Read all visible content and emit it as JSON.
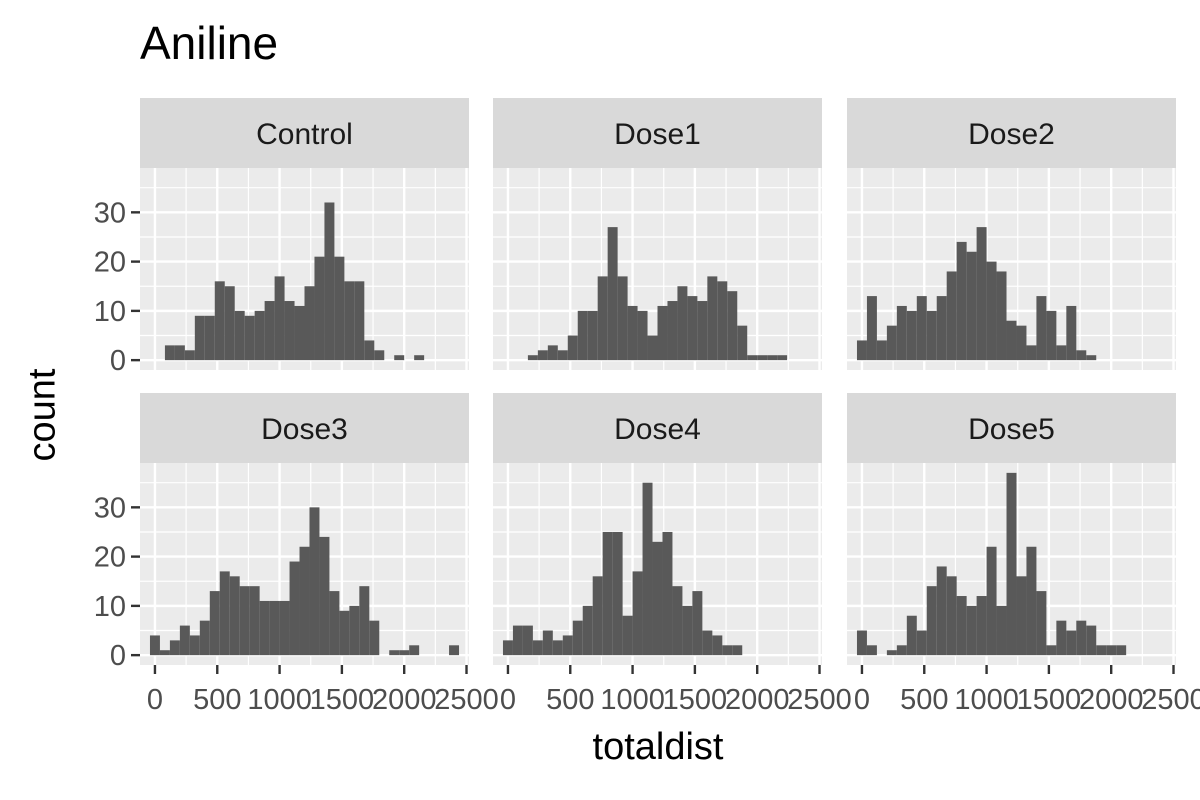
{
  "chart_data": {
    "type": "bar",
    "title": "Aniline",
    "xlabel": "totaldist",
    "ylabel": "count",
    "xlim": [
      -120,
      2520
    ],
    "ylim": [
      -2,
      39
    ],
    "x_ticks": [
      "0",
      "500",
      "1000",
      "1500",
      "2000",
      "2500"
    ],
    "y_ticks": [
      "0",
      "10",
      "20",
      "30"
    ],
    "bin_width": 80,
    "grid": true,
    "panels": [
      {
        "name": "Control",
        "bin_centers": [
          120,
          200,
          280,
          360,
          440,
          520,
          600,
          680,
          760,
          840,
          920,
          1000,
          1080,
          1160,
          1240,
          1320,
          1400,
          1480,
          1560,
          1640,
          1720,
          1800,
          1880,
          1960,
          2040,
          2120
        ],
        "counts": [
          3,
          3,
          2,
          9,
          9,
          16,
          15,
          10,
          9,
          10,
          12,
          17,
          12,
          11,
          15,
          21,
          32,
          21,
          16,
          16,
          4,
          2,
          0,
          1,
          0,
          1
        ]
      },
      {
        "name": "Dose1",
        "bin_centers": [
          200,
          280,
          360,
          440,
          520,
          600,
          680,
          760,
          840,
          920,
          1000,
          1080,
          1160,
          1240,
          1320,
          1400,
          1480,
          1560,
          1640,
          1720,
          1800,
          1880,
          1960,
          2040,
          2120,
          2200
        ],
        "counts": [
          1,
          2,
          3,
          2,
          5,
          10,
          10,
          17,
          27,
          17,
          11,
          10,
          5,
          11,
          12,
          15,
          13,
          12,
          17,
          16,
          14,
          7,
          1,
          1,
          1,
          1
        ]
      },
      {
        "name": "Dose2",
        "bin_centers": [
          0,
          80,
          160,
          240,
          320,
          400,
          480,
          560,
          640,
          720,
          800,
          880,
          960,
          1040,
          1120,
          1200,
          1280,
          1360,
          1440,
          1520,
          1600,
          1680,
          1760,
          1840
        ],
        "counts": [
          4,
          13,
          4,
          7,
          11,
          10,
          13,
          10,
          13,
          18,
          24,
          22,
          27,
          20,
          18,
          8,
          7,
          3,
          13,
          10,
          3,
          11,
          2,
          1
        ]
      },
      {
        "name": "Dose3",
        "bin_centers": [
          0,
          80,
          160,
          240,
          320,
          400,
          480,
          560,
          640,
          720,
          800,
          880,
          960,
          1040,
          1120,
          1200,
          1280,
          1360,
          1440,
          1520,
          1600,
          1680,
          1760,
          1840,
          1920,
          2000,
          2080,
          2160,
          2240,
          2320,
          2400
        ],
        "counts": [
          4,
          1,
          3,
          6,
          4,
          7,
          13,
          17,
          16,
          14,
          14,
          11,
          11,
          11,
          19,
          22,
          30,
          24,
          13,
          9,
          10,
          14,
          7,
          0,
          1,
          1,
          2,
          0,
          0,
          0,
          2
        ]
      },
      {
        "name": "Dose4",
        "bin_centers": [
          0,
          80,
          160,
          240,
          320,
          400,
          480,
          560,
          640,
          720,
          800,
          880,
          960,
          1040,
          1120,
          1200,
          1280,
          1360,
          1440,
          1520,
          1600,
          1680,
          1760,
          1840
        ],
        "counts": [
          3,
          6,
          6,
          3,
          5,
          3,
          4,
          7,
          10,
          16,
          25,
          25,
          8,
          17,
          35,
          23,
          25,
          14,
          10,
          13,
          5,
          4,
          2,
          2
        ]
      },
      {
        "name": "Dose5",
        "bin_centers": [
          0,
          80,
          160,
          240,
          320,
          400,
          480,
          560,
          640,
          720,
          800,
          880,
          960,
          1040,
          1120,
          1200,
          1280,
          1360,
          1440,
          1520,
          1600,
          1680,
          1760,
          1840,
          1920,
          2000,
          2080
        ],
        "counts": [
          5,
          2,
          0,
          1,
          2,
          8,
          5,
          14,
          18,
          16,
          12,
          10,
          12,
          22,
          10,
          37,
          16,
          22,
          13,
          2,
          7,
          5,
          7,
          6,
          2,
          2,
          2
        ]
      }
    ]
  }
}
